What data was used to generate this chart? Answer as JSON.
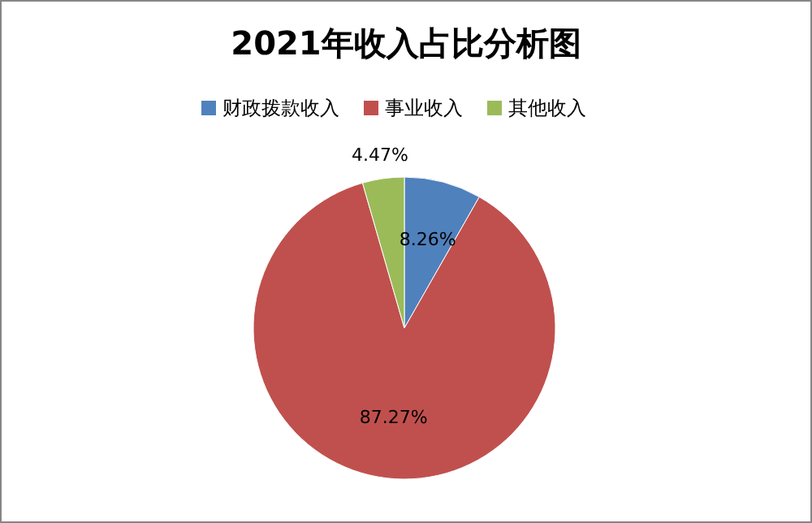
{
  "chart_data": {
    "type": "pie",
    "title": "2021年收入占比分析图",
    "categories": [
      "财政拨款收入",
      "事业收入",
      "其他收入"
    ],
    "values": [
      8.26,
      87.27,
      4.47
    ],
    "colors": [
      "#4f81bd",
      "#c0504d",
      "#9bbb59"
    ],
    "value_labels": [
      "8.26%",
      "87.27%",
      "4.47%"
    ],
    "legend": "top"
  }
}
